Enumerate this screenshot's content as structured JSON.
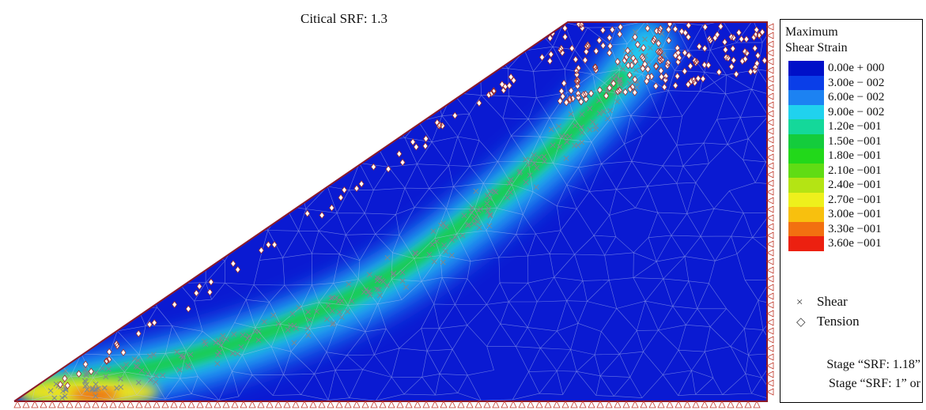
{
  "header": {
    "critical_srf": "Citical SRF: 1.3"
  },
  "legend": {
    "title_line1": "Maximum",
    "title_line2": "Shear Strain",
    "scale": [
      {
        "label": "0.00e + 000",
        "color": "#0010c8"
      },
      {
        "label": "3.00e − 002",
        "color": "#0a3ee8"
      },
      {
        "label": "6.00e − 002",
        "color": "#1c82f2"
      },
      {
        "label": "9.00e − 002",
        "color": "#20d2ee"
      },
      {
        "label": "1.20e −001",
        "color": "#14d89a"
      },
      {
        "label": "1.50e −001",
        "color": "#14cc3c"
      },
      {
        "label": "1.80e −001",
        "color": "#22d81a"
      },
      {
        "label": "2.10e −001",
        "color": "#60dc14"
      },
      {
        "label": "2.40e −001",
        "color": "#b4e414"
      },
      {
        "label": "2.70e −001",
        "color": "#eef01c"
      },
      {
        "label": "3.00e −001",
        "color": "#f8c00e"
      },
      {
        "label": "3.30e −001",
        "color": "#f27010"
      },
      {
        "label": "3.60e −001",
        "color": "#ec2010"
      }
    ],
    "markers": [
      {
        "symbol": "×",
        "label": "Shear",
        "icon": "shear-cross-icon"
      },
      {
        "symbol": "◇",
        "label": "Tension",
        "icon": "tension-diamond-icon"
      }
    ],
    "stage_lines": [
      "Stage “SRF: 1.18”",
      "Stage “SRF: 1” or"
    ]
  },
  "colors": {
    "background_field": "#0a1ad2",
    "mesh_line": "#b8c4f0",
    "boundary": "#8a1a2a",
    "support": "#c0392b"
  }
}
